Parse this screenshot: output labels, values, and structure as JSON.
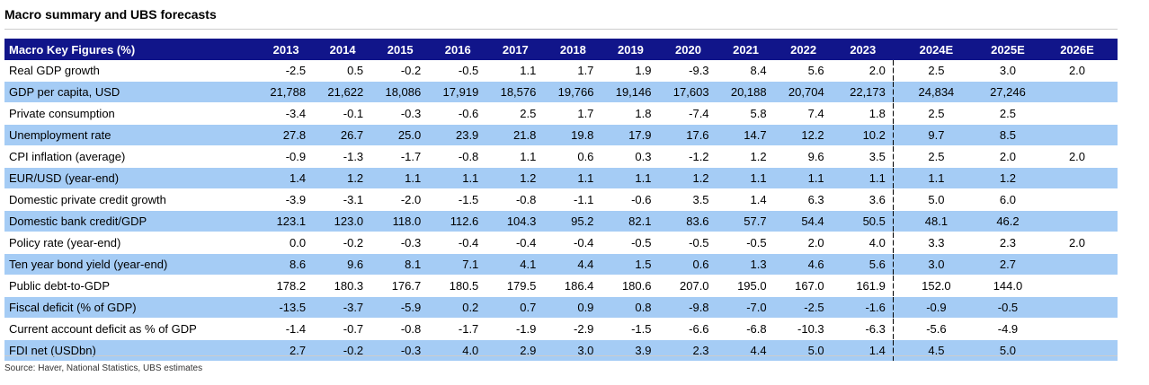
{
  "title": "Macro summary and UBS forecasts",
  "source": "Source: Haver, National Statistics, UBS estimates",
  "table": {
    "header_label": "Macro Key Figures (%)",
    "years": [
      "2013",
      "2014",
      "2015",
      "2016",
      "2017",
      "2018",
      "2019",
      "2020",
      "2021",
      "2022",
      "2023",
      "2024E",
      "2025E",
      "2026E"
    ],
    "rows": [
      {
        "label": "Real GDP growth",
        "values": [
          "-2.5",
          "0.5",
          "-0.2",
          "-0.5",
          "1.1",
          "1.7",
          "1.9",
          "-9.3",
          "8.4",
          "5.6",
          "2.0",
          "2.5",
          "3.0",
          "2.0"
        ]
      },
      {
        "label": "GDP per capita, USD",
        "values": [
          "21,788",
          "21,622",
          "18,086",
          "17,919",
          "18,576",
          "19,766",
          "19,146",
          "17,603",
          "20,188",
          "20,704",
          "22,173",
          "24,834",
          "27,246",
          ""
        ]
      },
      {
        "label": "Private consumption",
        "values": [
          "-3.4",
          "-0.1",
          "-0.3",
          "-0.6",
          "2.5",
          "1.7",
          "1.8",
          "-7.4",
          "5.8",
          "7.4",
          "1.8",
          "2.5",
          "2.5",
          ""
        ]
      },
      {
        "label": "Unemployment rate",
        "values": [
          "27.8",
          "26.7",
          "25.0",
          "23.9",
          "21.8",
          "19.8",
          "17.9",
          "17.6",
          "14.7",
          "12.2",
          "10.2",
          "9.7",
          "8.5",
          ""
        ]
      },
      {
        "label": "CPI inflation (average)",
        "values": [
          "-0.9",
          "-1.3",
          "-1.7",
          "-0.8",
          "1.1",
          "0.6",
          "0.3",
          "-1.2",
          "1.2",
          "9.6",
          "3.5",
          "2.5",
          "2.0",
          "2.0"
        ]
      },
      {
        "label": "EUR/USD (year-end)",
        "values": [
          "1.4",
          "1.2",
          "1.1",
          "1.1",
          "1.2",
          "1.1",
          "1.1",
          "1.2",
          "1.1",
          "1.1",
          "1.1",
          "1.1",
          "1.2",
          ""
        ]
      },
      {
        "label": "Domestic private credit growth",
        "values": [
          "-3.9",
          "-3.1",
          "-2.0",
          "-1.5",
          "-0.8",
          "-1.1",
          "-0.6",
          "3.5",
          "1.4",
          "6.3",
          "3.6",
          "5.0",
          "6.0",
          ""
        ]
      },
      {
        "label": "Domestic bank credit/GDP",
        "values": [
          "123.1",
          "123.0",
          "118.0",
          "112.6",
          "104.3",
          "95.2",
          "82.1",
          "83.6",
          "57.7",
          "54.4",
          "50.5",
          "48.1",
          "46.2",
          ""
        ]
      },
      {
        "label": "Policy rate (year-end)",
        "values": [
          "0.0",
          "-0.2",
          "-0.3",
          "-0.4",
          "-0.4",
          "-0.4",
          "-0.5",
          "-0.5",
          "-0.5",
          "2.0",
          "4.0",
          "3.3",
          "2.3",
          "2.0"
        ]
      },
      {
        "label": "Ten year bond yield (year-end)",
        "values": [
          "8.6",
          "9.6",
          "8.1",
          "7.1",
          "4.1",
          "4.4",
          "1.5",
          "0.6",
          "1.3",
          "4.6",
          "5.6",
          "3.0",
          "2.7",
          ""
        ]
      },
      {
        "label": "Public debt-to-GDP",
        "values": [
          "178.2",
          "180.3",
          "176.7",
          "180.5",
          "179.5",
          "186.4",
          "180.6",
          "207.0",
          "195.0",
          "167.0",
          "161.9",
          "152.0",
          "144.0",
          ""
        ]
      },
      {
        "label": "Fiscal deficit (% of GDP)",
        "values": [
          "-13.5",
          "-3.7",
          "-5.9",
          "0.2",
          "0.7",
          "0.9",
          "0.8",
          "-9.8",
          "-7.0",
          "-2.5",
          "-1.6",
          "-0.9",
          "-0.5",
          ""
        ]
      },
      {
        "label": "Current account deficit as % of GDP",
        "values": [
          "-1.4",
          "-0.7",
          "-0.8",
          "-1.7",
          "-1.9",
          "-2.9",
          "-1.5",
          "-6.6",
          "-6.8",
          "-10.3",
          "-6.3",
          "-5.6",
          "-4.9",
          ""
        ]
      },
      {
        "label": "FDI net (USDbn)",
        "values": [
          "2.7",
          "-0.2",
          "-0.3",
          "4.0",
          "2.9",
          "3.0",
          "3.9",
          "2.3",
          "4.4",
          "5.0",
          "1.4",
          "4.5",
          "5.0",
          ""
        ]
      }
    ]
  },
  "colors": {
    "header_bg": "#11158a",
    "row_shade": "#a5ccf5"
  }
}
